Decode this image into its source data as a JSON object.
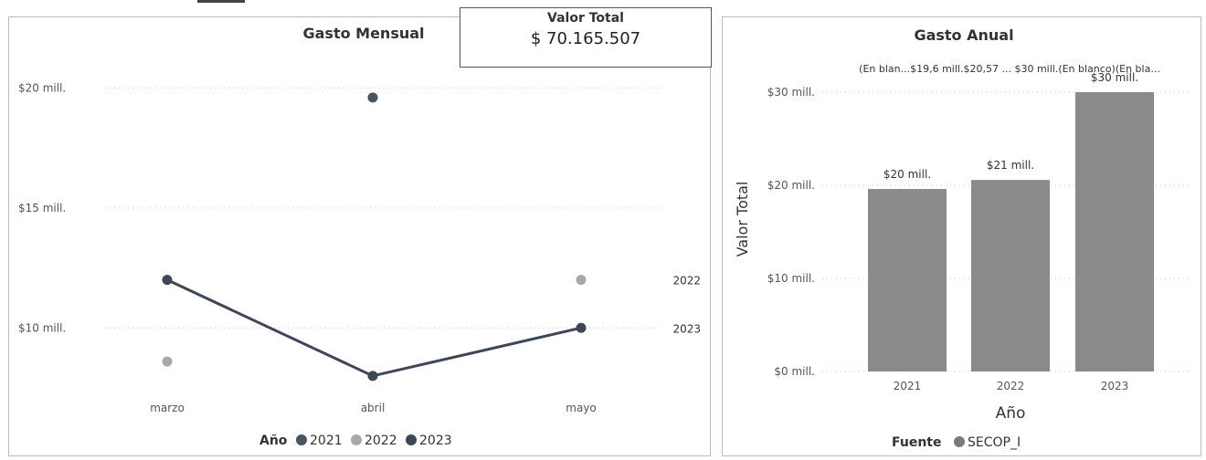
{
  "kpi": {
    "label": "Valor Total",
    "value": "$ 70.165.507"
  },
  "chart_data": [
    {
      "type": "line",
      "title": "Gasto Mensual",
      "categories": [
        "marzo",
        "abril",
        "mayo"
      ],
      "y_tick_labels": [
        "$10 mill.",
        "$15 mill.",
        "$20 mill."
      ],
      "y_ticks": [
        10,
        15,
        20
      ],
      "ylim": [
        7.5,
        21
      ],
      "legend": {
        "title": "Año",
        "placement": "bottom"
      },
      "series": [
        {
          "name": "2021",
          "color": "#4a5563",
          "show_line": false,
          "values": [
            null,
            19.6,
            null
          ]
        },
        {
          "name": "2022",
          "color": "#a8a8a8",
          "show_line": false,
          "values": [
            8.6,
            null,
            12.0
          ]
        },
        {
          "name": "2023",
          "color": "#3d4756",
          "show_line": true,
          "values": [
            12.0,
            8.0,
            10.0
          ]
        }
      ],
      "end_labels": [
        {
          "series": "2022",
          "text": "2022"
        },
        {
          "series": "2023",
          "text": "2023"
        }
      ],
      "grid": true
    },
    {
      "type": "bar",
      "title": "Gasto Anual",
      "categories": [
        "2021",
        "2022",
        "2023"
      ],
      "values": [
        19.6,
        20.57,
        30.0
      ],
      "data_labels": [
        "$20 mill.",
        "$21 mill.",
        "$30 mill."
      ],
      "xlabel": "Año",
      "ylabel": "Valor Total",
      "y_tick_labels": [
        "$0 mill.",
        "$10 mill.",
        "$20 mill.",
        "$30 mill."
      ],
      "y_ticks": [
        0,
        10,
        20,
        30
      ],
      "ylim": [
        0,
        30
      ],
      "bar_color": "#8a8a8a",
      "top_annotation": "(En blan...$19,6 mill.$20,57 ...  $30 mill.(En blanco)(En bla...",
      "legend": {
        "title": "Fuente",
        "items": [
          {
            "name": "SECOP_I",
            "color": "#7a7a7a"
          }
        ],
        "placement": "bottom"
      },
      "grid": true
    }
  ]
}
